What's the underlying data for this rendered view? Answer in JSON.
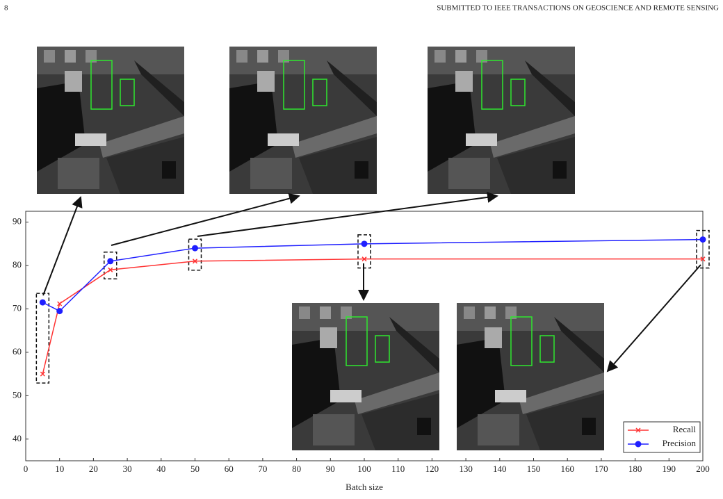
{
  "header": {
    "page": "8",
    "journal": "SUBMITTED TO IEEE TRANSACTIONS ON GEOSCIENCE AND REMOTE SENSING"
  },
  "chart_data": {
    "type": "line",
    "xlabel": "Batch size",
    "x": [
      5,
      10,
      25,
      50,
      100,
      200
    ],
    "series": [
      {
        "name": "Recall",
        "color": "#ff3333",
        "marker": "x",
        "values": [
          55,
          71.2,
          79,
          81,
          81.5,
          81.5
        ]
      },
      {
        "name": "Precision",
        "color": "#1f1fff",
        "marker": "o",
        "values": [
          71.5,
          69.5,
          81,
          84,
          85,
          86
        ]
      }
    ],
    "xlim": [
      0,
      200
    ],
    "xticks": [
      0,
      10,
      20,
      30,
      40,
      50,
      60,
      70,
      80,
      90,
      100,
      110,
      120,
      130,
      140,
      150,
      160,
      170,
      180,
      190,
      200
    ],
    "ylim": [
      35,
      92.5
    ],
    "yticks": [
      40,
      50,
      60,
      70,
      80,
      90
    ],
    "grid": false,
    "legend": "lower right"
  }
}
